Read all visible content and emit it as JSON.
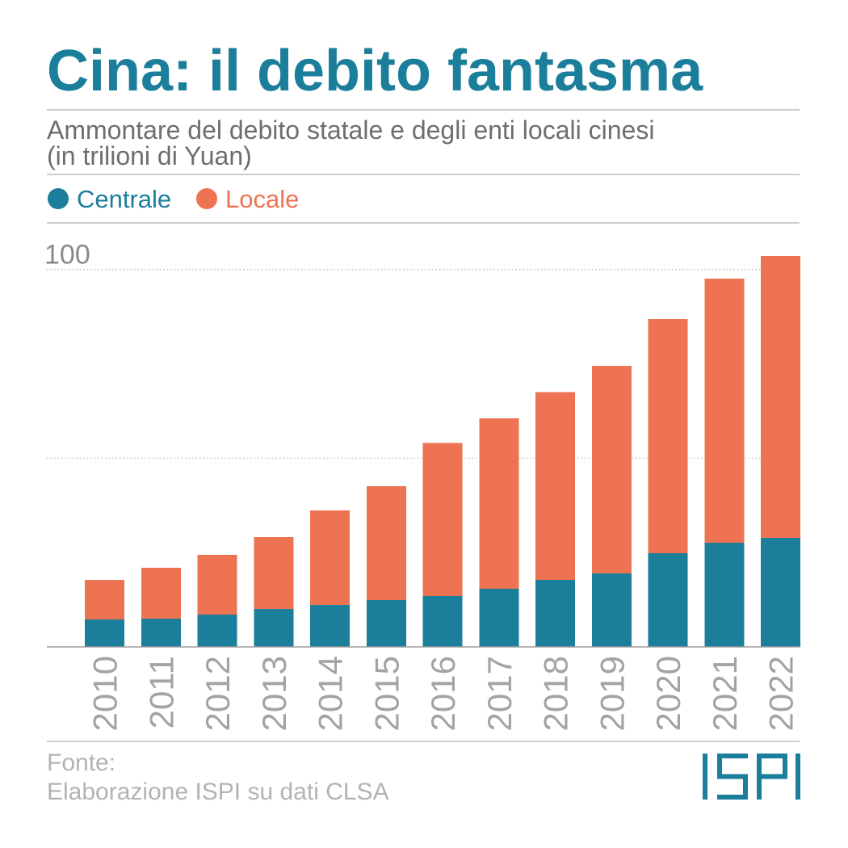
{
  "colors": {
    "brand": "#1b7e9a"
  },
  "chart_data": {
    "type": "bar",
    "stacked": true,
    "title": "Cina: il debito fantasma",
    "subtitle": "Ammontare del debito statale e degli enti locali cinesi",
    "unit_label": "(in trilioni di Yuan)",
    "categories": [
      "2010",
      "2011",
      "2012",
      "2013",
      "2014",
      "2015",
      "2016",
      "2017",
      "2018",
      "2019",
      "2020",
      "2021",
      "2022"
    ],
    "series": [
      {
        "name": "Centrale",
        "color": "#1b7e9a",
        "values": [
          7.3,
          7.5,
          8.6,
          10.1,
          11.1,
          12.4,
          13.5,
          15.4,
          17.8,
          19.5,
          24.8,
          27.6,
          28.9
        ]
      },
      {
        "name": "Locale",
        "color": "#ee7352",
        "values": [
          10.5,
          13.5,
          15.8,
          19.0,
          25.1,
          30.2,
          40.5,
          45.2,
          49.7,
          55.0,
          62.1,
          70.0,
          74.7
        ]
      }
    ],
    "ylim": [
      0,
      104
    ],
    "y_gridlines": [
      50,
      100
    ],
    "y_tick_labels": [
      {
        "value": 100,
        "label": "100"
      }
    ],
    "grid": true,
    "legend_position": "top-left"
  },
  "source": {
    "label": "Fonte:",
    "text": "Elaborazione ISPI su dati CLSA"
  },
  "logo": {
    "text": "ISPI",
    "color": "#1b7e9a"
  }
}
